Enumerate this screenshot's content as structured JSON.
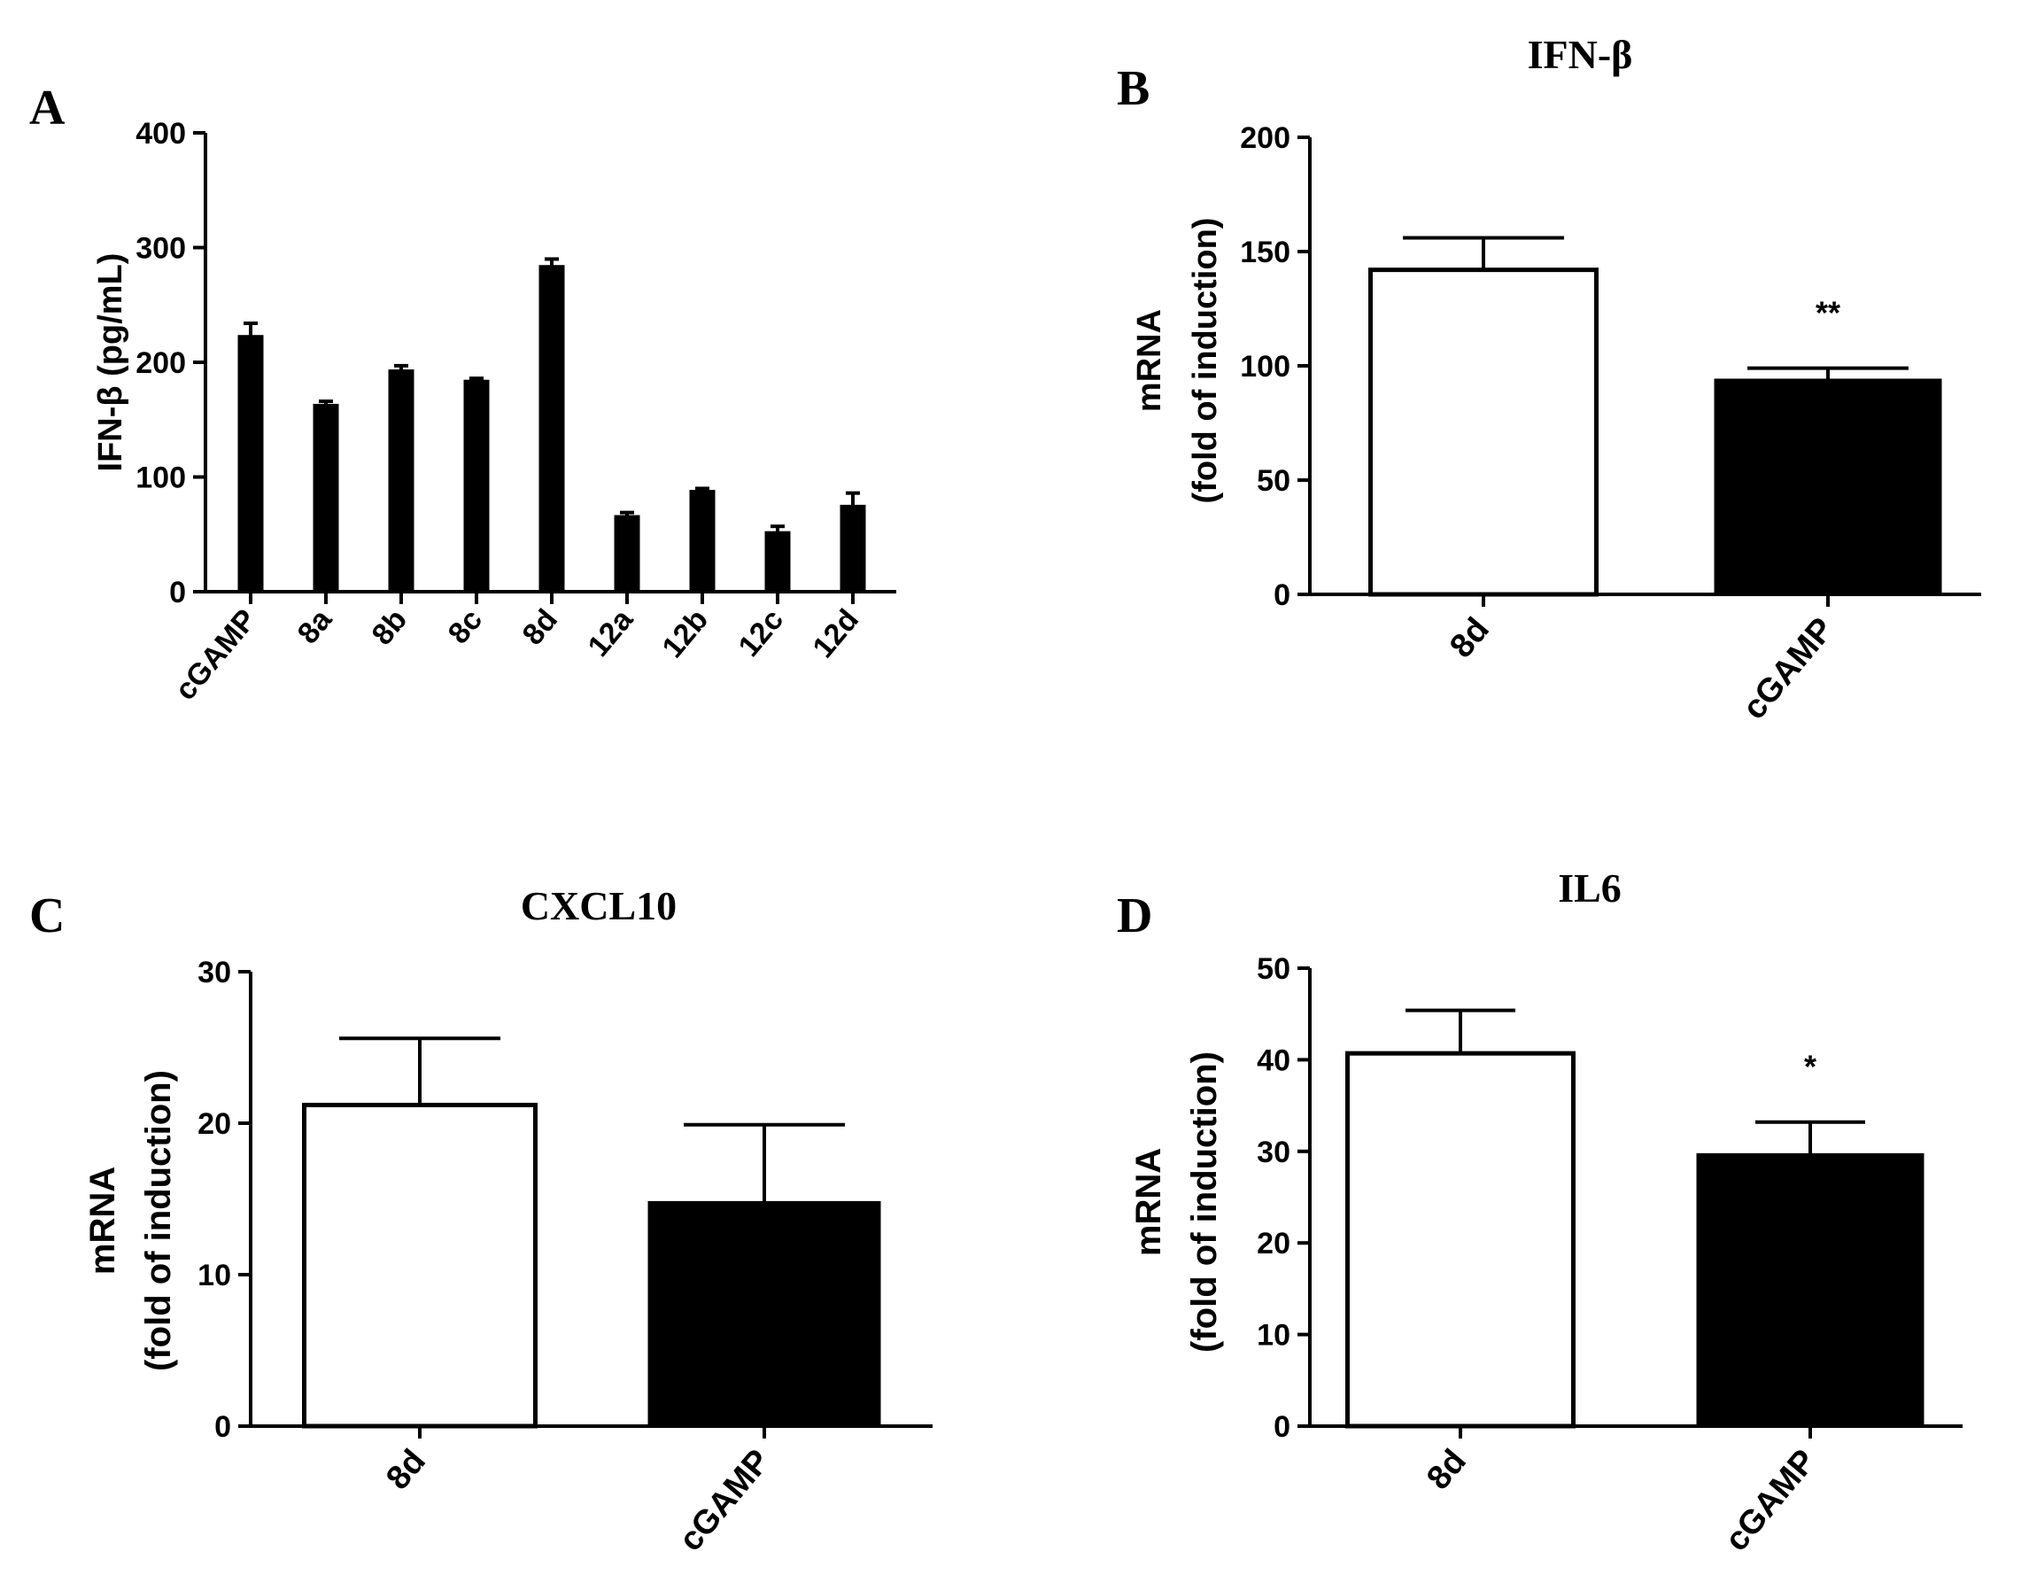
{
  "chart_data": [
    {
      "panel": "A",
      "type": "bar",
      "title": "",
      "categories": [
        "cGAMP",
        "8a",
        "8b",
        "8c",
        "8d",
        "12a",
        "12b",
        "12c",
        "12d"
      ],
      "values": [
        223,
        163,
        193,
        184,
        284,
        66,
        88,
        52,
        75
      ],
      "errors": [
        11,
        3,
        4,
        2,
        6,
        3,
        2,
        5,
        11
      ],
      "ylabel": "IFN-β (pg/mL)",
      "xlabel": "",
      "ylim": [
        0,
        400
      ],
      "yticks": [
        0,
        100,
        200,
        300,
        400
      ],
      "bar_colors": [
        "#000000",
        "#000000",
        "#000000",
        "#000000",
        "#000000",
        "#000000",
        "#000000",
        "#000000",
        "#000000"
      ],
      "significance": [
        "",
        "",
        "",
        "",
        "",
        "",
        "",
        "",
        ""
      ]
    },
    {
      "panel": "B",
      "type": "bar",
      "title": "IFN-β",
      "categories": [
        "8d",
        "cGAMP"
      ],
      "values": [
        142,
        94
      ],
      "errors": [
        14,
        5
      ],
      "ylabel": "mRNA",
      "ylabel2": "(fold of induction)",
      "xlabel": "",
      "ylim": [
        0,
        200
      ],
      "yticks": [
        0,
        50,
        100,
        150,
        200
      ],
      "bar_colors": [
        "#ffffff",
        "#000000"
      ],
      "significance": [
        "",
        "**"
      ]
    },
    {
      "panel": "C",
      "type": "bar",
      "title": "CXCL10",
      "categories": [
        "8d",
        "cGAMP"
      ],
      "values": [
        21.2,
        14.8
      ],
      "errors": [
        4.4,
        5.1
      ],
      "ylabel": "mRNA",
      "ylabel2": "(fold of induction)",
      "xlabel": "",
      "ylim": [
        0,
        30
      ],
      "yticks": [
        0,
        10,
        20,
        30
      ],
      "bar_colors": [
        "#ffffff",
        "#000000"
      ],
      "significance": [
        "",
        ""
      ]
    },
    {
      "panel": "D",
      "type": "bar",
      "title": "IL6",
      "categories": [
        "8d",
        "cGAMP"
      ],
      "values": [
        40.7,
        29.7
      ],
      "errors": [
        4.7,
        3.5
      ],
      "ylabel": "mRNA",
      "ylabel2": "(fold of induction)",
      "xlabel": "",
      "ylim": [
        0,
        50
      ],
      "yticks": [
        0,
        10,
        20,
        30,
        40,
        50
      ],
      "bar_colors": [
        "#ffffff",
        "#000000"
      ],
      "significance": [
        "",
        "*"
      ]
    }
  ]
}
